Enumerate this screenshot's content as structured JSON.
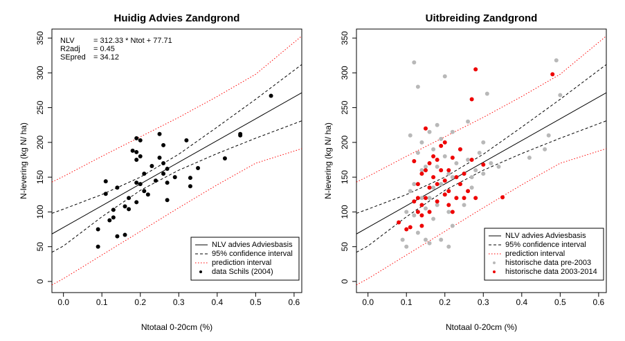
{
  "chart_data": [
    {
      "type": "scatter",
      "title": "Huidig Advies Zandgrond",
      "xlabel": "Ntotaal 0-20cm (%)",
      "ylabel": "N-levering (kg N/ ha)",
      "xlim": [
        -0.03,
        0.62
      ],
      "ylim": [
        -16,
        363
      ],
      "xticks": [
        {
          "value": 0,
          "label": "0.0"
        },
        0.1,
        0.2,
        0.3,
        0.4,
        0.5,
        0.6
      ],
      "yticks": [
        0,
        50,
        100,
        150,
        200,
        250,
        300,
        350
      ],
      "legend": "bottom-right",
      "annotations": [
        {
          "label": "NLV",
          "text": "= 312.33 * Ntot + 77.71"
        },
        {
          "label": "R2adj",
          "text": "= 0.45"
        },
        {
          "label": "SEpred",
          "text": "= 34.12"
        }
      ],
      "series": [
        {
          "name": "NLV advies Adviesbasis",
          "color": "#000000",
          "style": "solid",
          "x": [
            -0.03,
            0,
            0.1,
            0.2,
            0.3,
            0.4,
            0.5,
            0.62
          ],
          "values": [
            68.3,
            77.7,
            108.9,
            140.2,
            171.4,
            202.6,
            233.9,
            271.4
          ]
        },
        {
          "name": "95% confidence interval",
          "color": "#000000",
          "style": "dashed",
          "x": [
            -0.03,
            0,
            0.1,
            0.2,
            0.3,
            0.4,
            0.5,
            0.62
          ],
          "values": [
            98,
            104,
            125,
            150,
            183,
            222,
            262,
            312
          ]
        },
        {
          "color": "#000000",
          "style": "dashed",
          "x": [
            -0.03,
            0,
            0.1,
            0.2,
            0.3,
            0.4,
            0.5,
            0.62
          ],
          "values": [
            42,
            51,
            93,
            131,
            160,
            184,
            206,
            231
          ]
        },
        {
          "name": "prediction interval",
          "color": "#ff0000",
          "style": "dotted",
          "x": [
            -0.03,
            0,
            0.1,
            0.2,
            0.3,
            0.4,
            0.5,
            0.62
          ],
          "values": [
            143,
            151,
            180,
            208,
            236,
            266,
            298,
            353
          ]
        },
        {
          "color": "#ff0000",
          "style": "dotted",
          "x": [
            -0.03,
            0,
            0.1,
            0.2,
            0.3,
            0.4,
            0.5,
            0.62
          ],
          "values": [
            -5,
            4,
            38,
            72,
            106,
            139,
            170,
            191
          ]
        },
        {
          "name": "data Schils (2004)",
          "color": "#000000",
          "style": "point",
          "x": [
            0.09,
            0.09,
            0.11,
            0.11,
            0.12,
            0.13,
            0.13,
            0.14,
            0.14,
            0.16,
            0.16,
            0.17,
            0.17,
            0.18,
            0.19,
            0.19,
            0.19,
            0.19,
            0.19,
            0.2,
            0.2,
            0.2,
            0.21,
            0.21,
            0.22,
            0.23,
            0.24,
            0.25,
            0.25,
            0.26,
            0.26,
            0.26,
            0.27,
            0.27,
            0.27,
            0.29,
            0.32,
            0.33,
            0.33,
            0.35,
            0.42,
            0.46,
            0.46,
            0.54
          ],
          "values": [
            50,
            75,
            126,
            144,
            88,
            92,
            103,
            65,
            135,
            67,
            108,
            104,
            120,
            188,
            206,
            186,
            142,
            114,
            175,
            203,
            180,
            140,
            155,
            130,
            125,
            166,
            145,
            212,
            178,
            196,
            155,
            170,
            162,
            117,
            142,
            150,
            203,
            149,
            137,
            163,
            177,
            212,
            210,
            267
          ]
        }
      ]
    },
    {
      "type": "scatter",
      "title": "Uitbreiding Zandgrond",
      "xlabel": "Ntotaal 0-20cm (%)",
      "ylabel": "N-levering (kg N/ ha)",
      "xlim": [
        -0.03,
        0.62
      ],
      "ylim": [
        -16,
        363
      ],
      "xticks": [
        {
          "value": 0,
          "label": "0.0"
        },
        0.1,
        0.2,
        0.3,
        0.4,
        0.5,
        0.6
      ],
      "yticks": [
        0,
        50,
        100,
        150,
        200,
        250,
        300,
        350
      ],
      "legend": "bottom-right",
      "series": [
        {
          "name": "NLV advies Adviesbasis",
          "color": "#000000",
          "style": "solid",
          "x": [
            -0.03,
            0,
            0.1,
            0.2,
            0.3,
            0.4,
            0.5,
            0.62
          ],
          "values": [
            68.3,
            77.7,
            108.9,
            140.2,
            171.4,
            202.6,
            233.9,
            271.4
          ]
        },
        {
          "name": "95% confidence interval",
          "color": "#000000",
          "style": "dashed",
          "x": [
            -0.03,
            0,
            0.1,
            0.2,
            0.3,
            0.4,
            0.5,
            0.62
          ],
          "values": [
            98,
            104,
            125,
            150,
            183,
            222,
            262,
            312
          ]
        },
        {
          "color": "#000000",
          "style": "dashed",
          "x": [
            -0.03,
            0,
            0.1,
            0.2,
            0.3,
            0.4,
            0.5,
            0.62
          ],
          "values": [
            42,
            51,
            93,
            131,
            160,
            184,
            206,
            231
          ]
        },
        {
          "name": "prediction interval",
          "color": "#ff0000",
          "style": "dotted",
          "x": [
            -0.03,
            0,
            0.1,
            0.2,
            0.3,
            0.4,
            0.5,
            0.62
          ],
          "values": [
            143,
            151,
            180,
            208,
            236,
            266,
            298,
            353
          ]
        },
        {
          "color": "#ff0000",
          "style": "dotted",
          "x": [
            -0.03,
            0,
            0.1,
            0.2,
            0.3,
            0.4,
            0.5,
            0.62
          ],
          "values": [
            -5,
            4,
            38,
            72,
            106,
            139,
            170,
            191
          ]
        },
        {
          "name": "historische data pre-2003",
          "color": "#b8b8b8",
          "style": "point",
          "x": [
            0.09,
            0.1,
            0.1,
            0.11,
            0.11,
            0.12,
            0.12,
            0.12,
            0.13,
            0.13,
            0.13,
            0.14,
            0.14,
            0.14,
            0.15,
            0.15,
            0.15,
            0.16,
            0.16,
            0.16,
            0.17,
            0.17,
            0.17,
            0.18,
            0.18,
            0.18,
            0.19,
            0.19,
            0.19,
            0.2,
            0.2,
            0.2,
            0.21,
            0.21,
            0.21,
            0.22,
            0.22,
            0.22,
            0.23,
            0.23,
            0.24,
            0.24,
            0.25,
            0.25,
            0.26,
            0.26,
            0.27,
            0.27,
            0.28,
            0.29,
            0.3,
            0.3,
            0.31,
            0.32,
            0.34,
            0.42,
            0.46,
            0.47,
            0.49,
            0.5
          ],
          "values": [
            60,
            50,
            100,
            130,
            210,
            315,
            140,
            95,
            280,
            185,
            70,
            120,
            200,
            160,
            165,
            60,
            105,
            120,
            215,
            55,
            135,
            190,
            90,
            110,
            225,
            165,
            140,
            60,
            205,
            180,
            125,
            295,
            100,
            155,
            50,
            150,
            215,
            80,
            170,
            120,
            140,
            190,
            110,
            155,
            175,
            230,
            150,
            135,
            160,
            185,
            200,
            155,
            270,
            170,
            165,
            178,
            190,
            210,
            318,
            268
          ]
        },
        {
          "name": "historische data 2003-2014",
          "color": "#ee0000",
          "style": "point",
          "x": [
            0.08,
            0.1,
            0.11,
            0.12,
            0.12,
            0.13,
            0.13,
            0.13,
            0.14,
            0.14,
            0.14,
            0.14,
            0.15,
            0.15,
            0.15,
            0.16,
            0.16,
            0.16,
            0.17,
            0.17,
            0.18,
            0.18,
            0.18,
            0.19,
            0.19,
            0.2,
            0.2,
            0.2,
            0.21,
            0.21,
            0.21,
            0.22,
            0.22,
            0.23,
            0.23,
            0.24,
            0.24,
            0.25,
            0.25,
            0.26,
            0.27,
            0.27,
            0.28,
            0.28,
            0.3,
            0.35,
            0.48
          ],
          "values": [
            85,
            75,
            78,
            173,
            115,
            120,
            100,
            140,
            80,
            95,
            110,
            155,
            120,
            160,
            220,
            170,
            135,
            100,
            150,
            180,
            140,
            115,
            175,
            160,
            195,
            145,
            125,
            200,
            130,
            110,
            160,
            178,
            100,
            120,
            150,
            140,
            190,
            155,
            120,
            130,
            262,
            175,
            305,
            120,
            168,
            121,
            298
          ]
        }
      ]
    }
  ]
}
